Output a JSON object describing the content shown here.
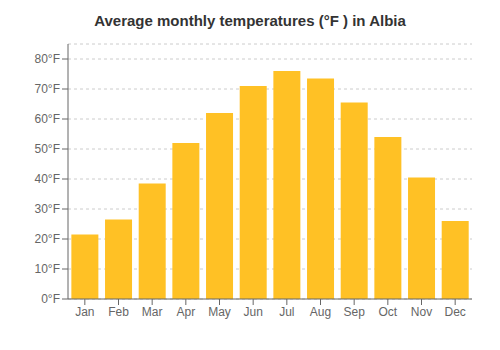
{
  "chart_data": {
    "type": "bar",
    "title": "Average monthly temperatures (°F ) in Albia",
    "categories": [
      "Jan",
      "Feb",
      "Mar",
      "Apr",
      "May",
      "Jun",
      "Jul",
      "Aug",
      "Sep",
      "Oct",
      "Nov",
      "Dec"
    ],
    "values": [
      21.5,
      26.5,
      38.5,
      52,
      62,
      71,
      76,
      73.5,
      65.5,
      54,
      40.5,
      26
    ],
    "color": "#FFC125",
    "ylim": [
      0,
      85
    ],
    "yticks": [
      {
        "value": 0,
        "label": "0°F"
      },
      {
        "value": 10,
        "label": "10°F"
      },
      {
        "value": 20,
        "label": "20°F"
      },
      {
        "value": 30,
        "label": "30°F"
      },
      {
        "value": 40,
        "label": "40°F"
      },
      {
        "value": 50,
        "label": "50°F"
      },
      {
        "value": 60,
        "label": "60°F"
      },
      {
        "value": 70,
        "label": "70°F"
      },
      {
        "value": 80,
        "label": "80°F"
      }
    ],
    "grid": true
  }
}
